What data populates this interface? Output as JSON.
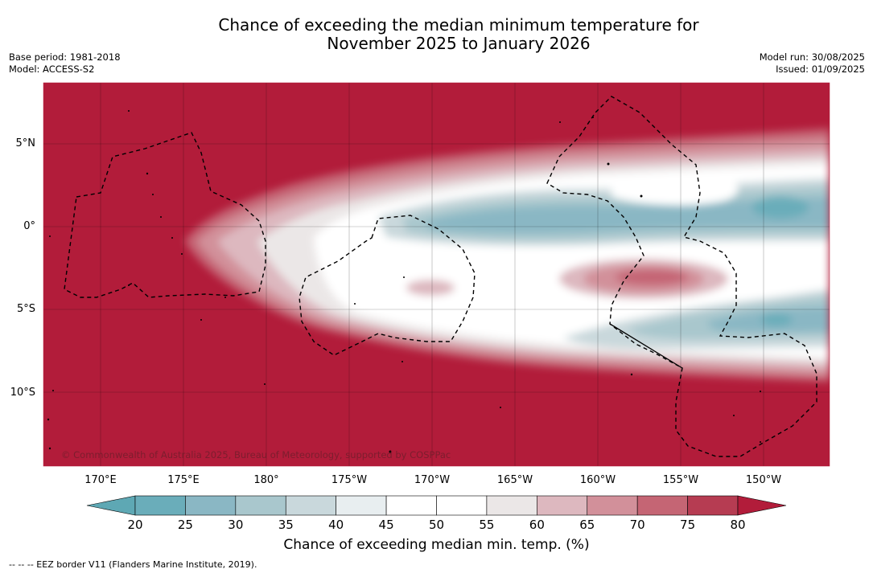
{
  "title": {
    "line1": "Chance of exceeding the median minimum temperature for",
    "line2": "November 2025 to January 2026"
  },
  "meta_left": {
    "base_period": "Base period: 1981-2018",
    "model": "Model: ACCESS-S2"
  },
  "meta_right": {
    "model_run": "Model run: 30/08/2025",
    "issued": "Issued: 01/09/2025"
  },
  "map": {
    "longitude_labels": [
      "170°E",
      "175°E",
      "180°",
      "175°W",
      "170°W",
      "165°W",
      "160°W",
      "155°W",
      "150°W"
    ],
    "latitude_labels": [
      "5°N",
      "0°",
      "5°S",
      "10°S"
    ],
    "copyright": "© Commonwealth of Australia 2025, Bureau of Meteorology, supported by COSPPac",
    "background_color": "#b21c3a"
  },
  "colorbar": {
    "ticks": [
      "20",
      "25",
      "30",
      "35",
      "40",
      "45",
      "50",
      "55",
      "60",
      "65",
      "70",
      "75",
      "80"
    ],
    "colors": [
      "#5ea8b4",
      "#6aadba",
      "#8ab7c4",
      "#a9c7cd",
      "#c9d8dc",
      "#e8eef0",
      "#ffffff",
      "#ffffff",
      "#ebe7e7",
      "#ddb8bf",
      "#d2909a",
      "#c56574",
      "#b63c52",
      "#b21c3a"
    ],
    "label": "Chance of exceeding median min. temp. (%)"
  },
  "footer": {
    "legend": "--  --  -- EEZ border V11 (Flanders Marine Institute, 2019)."
  }
}
